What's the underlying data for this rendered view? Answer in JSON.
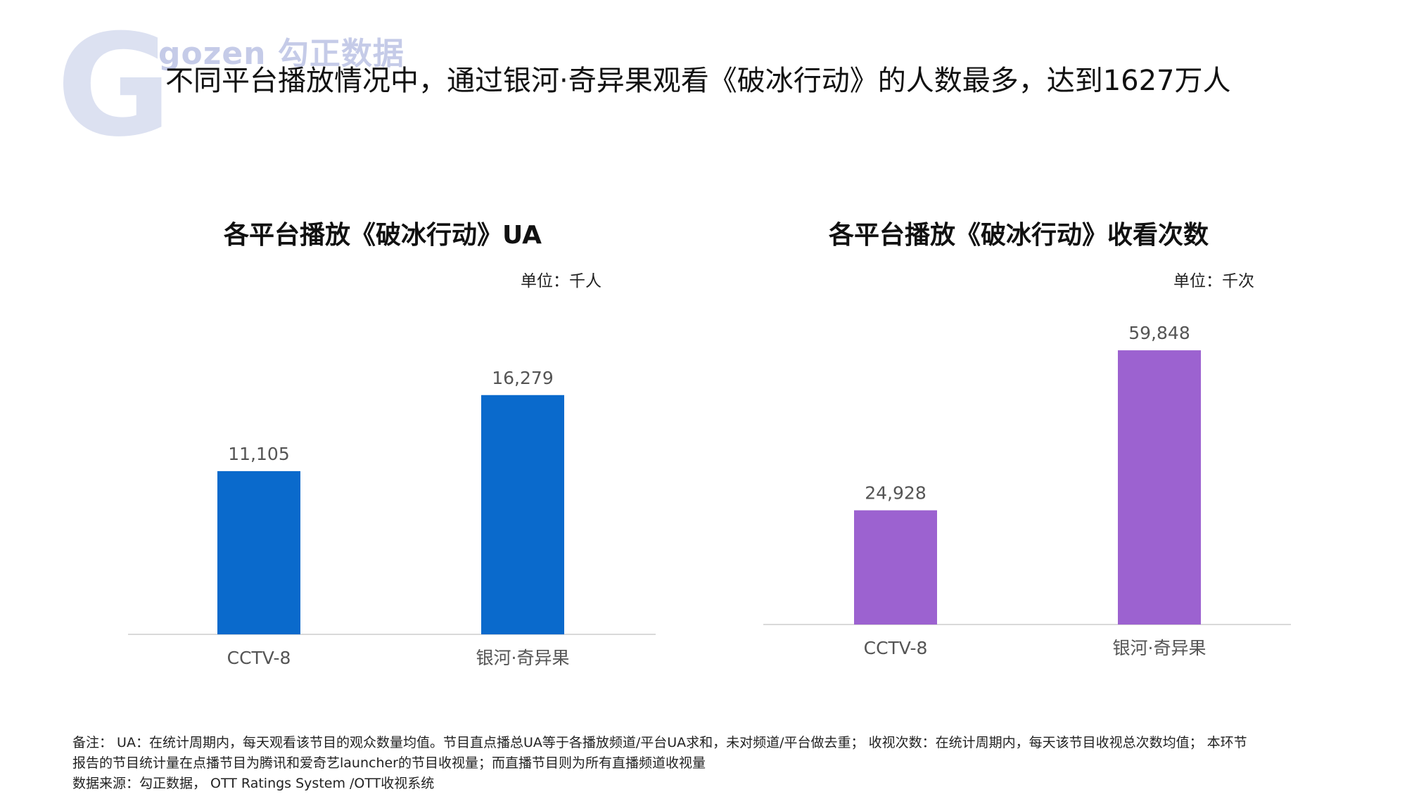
{
  "logo": {
    "letter": "G",
    "brand_text": "gozen 勾正数据"
  },
  "headline": "不同平台播放情况中，通过银河·奇异果观看《破冰行动》的人数最多，达到1627万人",
  "colors": {
    "left_bars": "#0a6acc",
    "right_bars": "#9c62d0",
    "axis": "#d9d9d9",
    "label": "#555555"
  },
  "chart_data": [
    {
      "type": "bar",
      "title": "各平台播放《破冰行动》UA",
      "unit": "单位：千人",
      "categories": [
        "CCTV-8",
        "银河·奇异果"
      ],
      "values": [
        11105,
        16279
      ],
      "value_labels": [
        "11,105",
        "16,279"
      ],
      "ylim": [
        0,
        20000
      ],
      "grid": false,
      "legend": "none"
    },
    {
      "type": "bar",
      "title": "各平台播放《破冰行动》收看次数",
      "unit": "单位：千次",
      "categories": [
        "CCTV-8",
        "银河·奇异果"
      ],
      "values": [
        24928,
        59848
      ],
      "value_labels": [
        "24,928",
        "59,848"
      ],
      "ylim": [
        0,
        68000
      ],
      "grid": false,
      "legend": "none"
    }
  ],
  "notes": {
    "line1": "备注： UA：在统计周期内，每天观看该节目的观众数量均值。节目直点播总UA等于各播放频道/平台UA求和，未对频道/平台做去重； 收视次数：在统计周期内，每天该节目收视总次数均值； 本环节",
    "line2": "报告的节目统计量在点播节目为腾讯和爱奇艺launcher的节目收视量；而直播节目则为所有直播频道收视量",
    "source": "数据来源：勾正数据， OTT Ratings System /OTT收视系统"
  }
}
